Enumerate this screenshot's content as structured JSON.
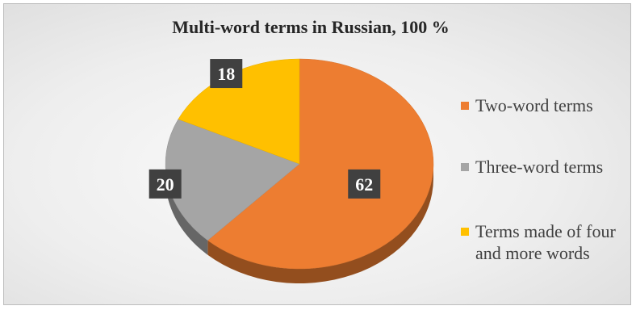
{
  "chart_data": {
    "type": "pie",
    "title": "Multi-word terms in Russian, 100 %",
    "categories": [
      "Two-word terms",
      "Three-word terms",
      "Terms made of four and more words"
    ],
    "values": [
      62,
      20,
      18
    ],
    "colors": [
      "#ed7d31",
      "#a5a5a5",
      "#ffc000"
    ],
    "style": "3d",
    "legend_position": "right",
    "data_labels": [
      "62",
      "20",
      "18"
    ]
  }
}
